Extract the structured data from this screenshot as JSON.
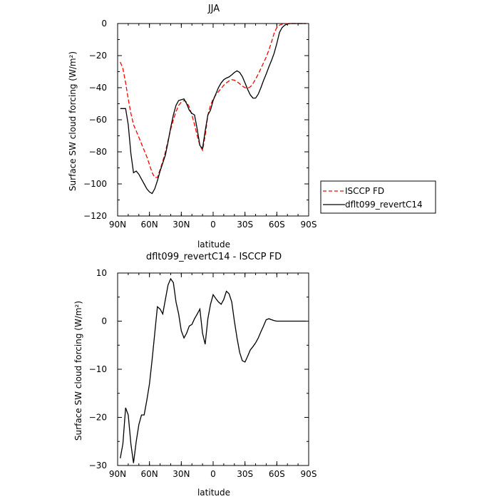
{
  "chart_data": [
    {
      "type": "line",
      "title": "JJA",
      "xlabel": "latitude",
      "ylabel": "Surface SW cloud forcing (W/m²)",
      "xlim": [
        90,
        -90
      ],
      "ylim": [
        -120,
        0
      ],
      "xticks": [
        {
          "value": 90,
          "label": "90N"
        },
        {
          "value": 60,
          "label": "60N"
        },
        {
          "value": 30,
          "label": "30N"
        },
        {
          "value": 0,
          "label": "0"
        },
        {
          "value": -30,
          "label": "30S"
        },
        {
          "value": -60,
          "label": "60S"
        },
        {
          "value": -90,
          "label": "90S"
        }
      ],
      "yticks": [
        0,
        -20,
        -40,
        -60,
        -80,
        -100,
        -120
      ],
      "legend_position": "right",
      "series": [
        {
          "name": "ISCCP FD",
          "color": "#ff0000",
          "dash": "dashed",
          "x": [
            87.5,
            85,
            82.5,
            80,
            77.5,
            75,
            72.5,
            70,
            67.5,
            65,
            62.5,
            60,
            57.5,
            55,
            52.5,
            50,
            47.5,
            45,
            42.5,
            40,
            37.5,
            35,
            32.5,
            30,
            27.5,
            25,
            22.5,
            20,
            17.5,
            15,
            12.5,
            10,
            7.5,
            5,
            2.5,
            0,
            -2.5,
            -5,
            -7.5,
            -10,
            -12.5,
            -15,
            -17.5,
            -20,
            -22.5,
            -25,
            -27.5,
            -30,
            -32.5,
            -35,
            -37.5,
            -40,
            -42.5,
            -45,
            -47.5,
            -50,
            -52.5,
            -55,
            -57.5,
            -60,
            -62.5,
            -65,
            -67.5,
            -70,
            -72.5,
            -75,
            -77.5,
            -80,
            -82.5,
            -85,
            -87.5
          ],
          "y": [
            -24,
            -28,
            -37,
            -47,
            -56,
            -63,
            -67,
            -71,
            -75,
            -79,
            -83,
            -88,
            -93,
            -96,
            -96,
            -91,
            -86,
            -80,
            -73,
            -66,
            -60,
            -55,
            -51,
            -49,
            -48,
            -49,
            -52,
            -57,
            -63,
            -70,
            -76,
            -79,
            -70,
            -57,
            -51,
            -47,
            -44.5,
            -42.5,
            -40.5,
            -38.5,
            -37,
            -35.8,
            -35,
            -35.3,
            -36.3,
            -37.5,
            -39,
            -40,
            -40.3,
            -39.5,
            -37.5,
            -34.5,
            -31.5,
            -28,
            -24.5,
            -21,
            -16.5,
            -11.5,
            -6,
            -2.5,
            -1,
            -0.4,
            -0.2,
            -0.1,
            0,
            0,
            0,
            0,
            0,
            0,
            0
          ]
        },
        {
          "name": "dflt099_revertC14",
          "color": "#000000",
          "dash": "solid",
          "x": [
            87.5,
            85,
            82.5,
            80,
            77.5,
            75,
            72.5,
            70,
            67.5,
            65,
            62.5,
            60,
            57.5,
            55,
            52.5,
            50,
            47.5,
            45,
            42.5,
            40,
            37.5,
            35,
            32.5,
            30,
            27.5,
            25,
            22.5,
            20,
            17.5,
            15,
            12.5,
            10,
            7.5,
            5,
            2.5,
            0,
            -2.5,
            -5,
            -7.5,
            -10,
            -12.5,
            -15,
            -17.5,
            -20,
            -22.5,
            -25,
            -27.5,
            -30,
            -32.5,
            -35,
            -37.5,
            -40,
            -42.5,
            -45,
            -47.5,
            -50,
            -52.5,
            -55,
            -57.5,
            -60,
            -62.5,
            -65,
            -67.5,
            -70,
            -72.5,
            -75,
            -77.5,
            -80,
            -82.5,
            -85,
            -87.5
          ],
          "y": [
            -53,
            -53,
            -53,
            -63,
            -81,
            -93,
            -92,
            -94,
            -97,
            -100,
            -103,
            -105,
            -106,
            -103,
            -98,
            -92,
            -87,
            -82,
            -74,
            -65,
            -57,
            -51,
            -48,
            -47.5,
            -47,
            -50,
            -54,
            -56,
            -57,
            -66,
            -76,
            -78,
            -67,
            -57,
            -54,
            -48,
            -44,
            -40,
            -37,
            -35,
            -34,
            -33.3,
            -32,
            -30.5,
            -29.5,
            -30.5,
            -33,
            -37,
            -41,
            -44.5,
            -46.5,
            -46.5,
            -44,
            -40,
            -35.5,
            -31.5,
            -27,
            -23,
            -18.5,
            -12.5,
            -5.5,
            -2.5,
            -1,
            -0.3,
            0,
            0,
            0,
            0,
            0,
            0,
            0
          ]
        }
      ]
    },
    {
      "type": "line",
      "title": "dflt099_revertC14 - ISCCP FD",
      "xlabel": "latitude",
      "ylabel": "Surface SW cloud forcing (W/m²)",
      "xlim": [
        90,
        -90
      ],
      "ylim": [
        -30,
        10
      ],
      "xticks": [
        {
          "value": 90,
          "label": "90N"
        },
        {
          "value": 60,
          "label": "60N"
        },
        {
          "value": 30,
          "label": "30N"
        },
        {
          "value": 0,
          "label": "0"
        },
        {
          "value": -30,
          "label": "30S"
        },
        {
          "value": -60,
          "label": "60S"
        },
        {
          "value": -90,
          "label": "90S"
        }
      ],
      "yticks": [
        10,
        0,
        -10,
        -20,
        -30
      ],
      "series": [
        {
          "color": "#000000",
          "dash": "solid",
          "x": [
            87.5,
            85,
            82.5,
            80,
            77.5,
            75,
            72.5,
            70,
            67.5,
            65,
            62.5,
            60,
            57.5,
            55,
            52.5,
            50,
            47.5,
            45,
            42.5,
            40,
            37.5,
            35,
            32.5,
            30,
            27.5,
            25,
            22.5,
            20,
            17.5,
            15,
            12.5,
            10,
            7.5,
            5,
            2.5,
            0,
            -2.5,
            -5,
            -7.5,
            -10,
            -12.5,
            -15,
            -17.5,
            -20,
            -22.5,
            -25,
            -27.5,
            -30,
            -32.5,
            -35,
            -37.5,
            -40,
            -42.5,
            -45,
            -47.5,
            -50,
            -52.5,
            -55,
            -57.5,
            -60,
            -62.5,
            -65,
            -67.5,
            -70,
            -72.5,
            -75,
            -77.5,
            -80,
            -82.5,
            -85,
            -87.5
          ],
          "y": [
            -28.5,
            -25.5,
            -18,
            -19.5,
            -25.5,
            -29.5,
            -25,
            -21.5,
            -19.5,
            -19.5,
            -16.5,
            -13,
            -8,
            -2.5,
            3,
            2.5,
            1.5,
            4.5,
            7.5,
            8.8,
            8,
            4,
            1.5,
            -2,
            -3.5,
            -2.5,
            -1,
            -0.7,
            0.5,
            1.5,
            2.5,
            -2.5,
            -4.8,
            0.5,
            3.5,
            5.5,
            4.7,
            4,
            3.5,
            4.5,
            6.2,
            5.7,
            4,
            0,
            -3.5,
            -6.5,
            -8.2,
            -8.5,
            -7.3,
            -6,
            -5.3,
            -4.5,
            -3.5,
            -2.2,
            -1,
            0.3,
            0.5,
            0.3,
            0.1,
            0,
            0,
            0,
            0,
            0,
            0,
            0,
            0,
            0,
            0,
            0,
            0
          ]
        }
      ]
    }
  ]
}
